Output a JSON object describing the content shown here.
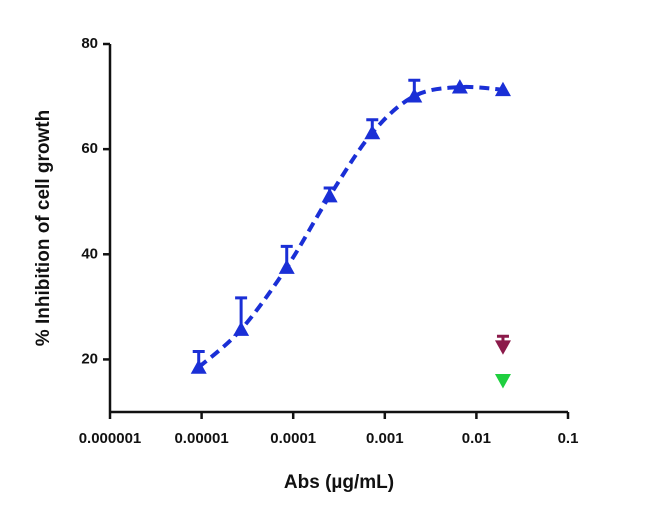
{
  "chart_data": {
    "type": "scatter",
    "xlabel": "Abs (µg/mL)",
    "ylabel": "% Inhibition of cell growth",
    "xscale": "log",
    "xlim": [
      1e-06,
      0.1
    ],
    "xticks": [
      1e-06,
      1e-05,
      0.0001,
      0.001,
      0.01,
      0.1
    ],
    "ylim": [
      10,
      80
    ],
    "yticks": [
      20,
      40,
      60,
      80
    ],
    "series": [
      {
        "color": "#1a2fd6",
        "marker": "triangle-up",
        "line": "dashed",
        "x": [
          9.3e-06,
          2.7e-05,
          8.5e-05,
          0.00025,
          0.00073,
          0.0021,
          0.0066,
          0.0195
        ],
        "values": [
          18.5,
          25.7,
          37.5,
          51.1,
          63.1,
          70.1,
          71.8,
          71.3
        ],
        "errors": [
          3,
          6,
          4,
          1.5,
          2.5,
          3,
          null,
          null
        ]
      },
      {
        "color": "#8b1a4a",
        "marker": "triangle-down",
        "x": [
          0.0195
        ],
        "values": [
          22.4
        ],
        "errors": [
          2
        ]
      },
      {
        "color": "#1fcf3f",
        "marker": "triangle-down",
        "x": [
          0.0195
        ],
        "values": [
          16
        ],
        "errors": [
          null
        ]
      }
    ]
  }
}
